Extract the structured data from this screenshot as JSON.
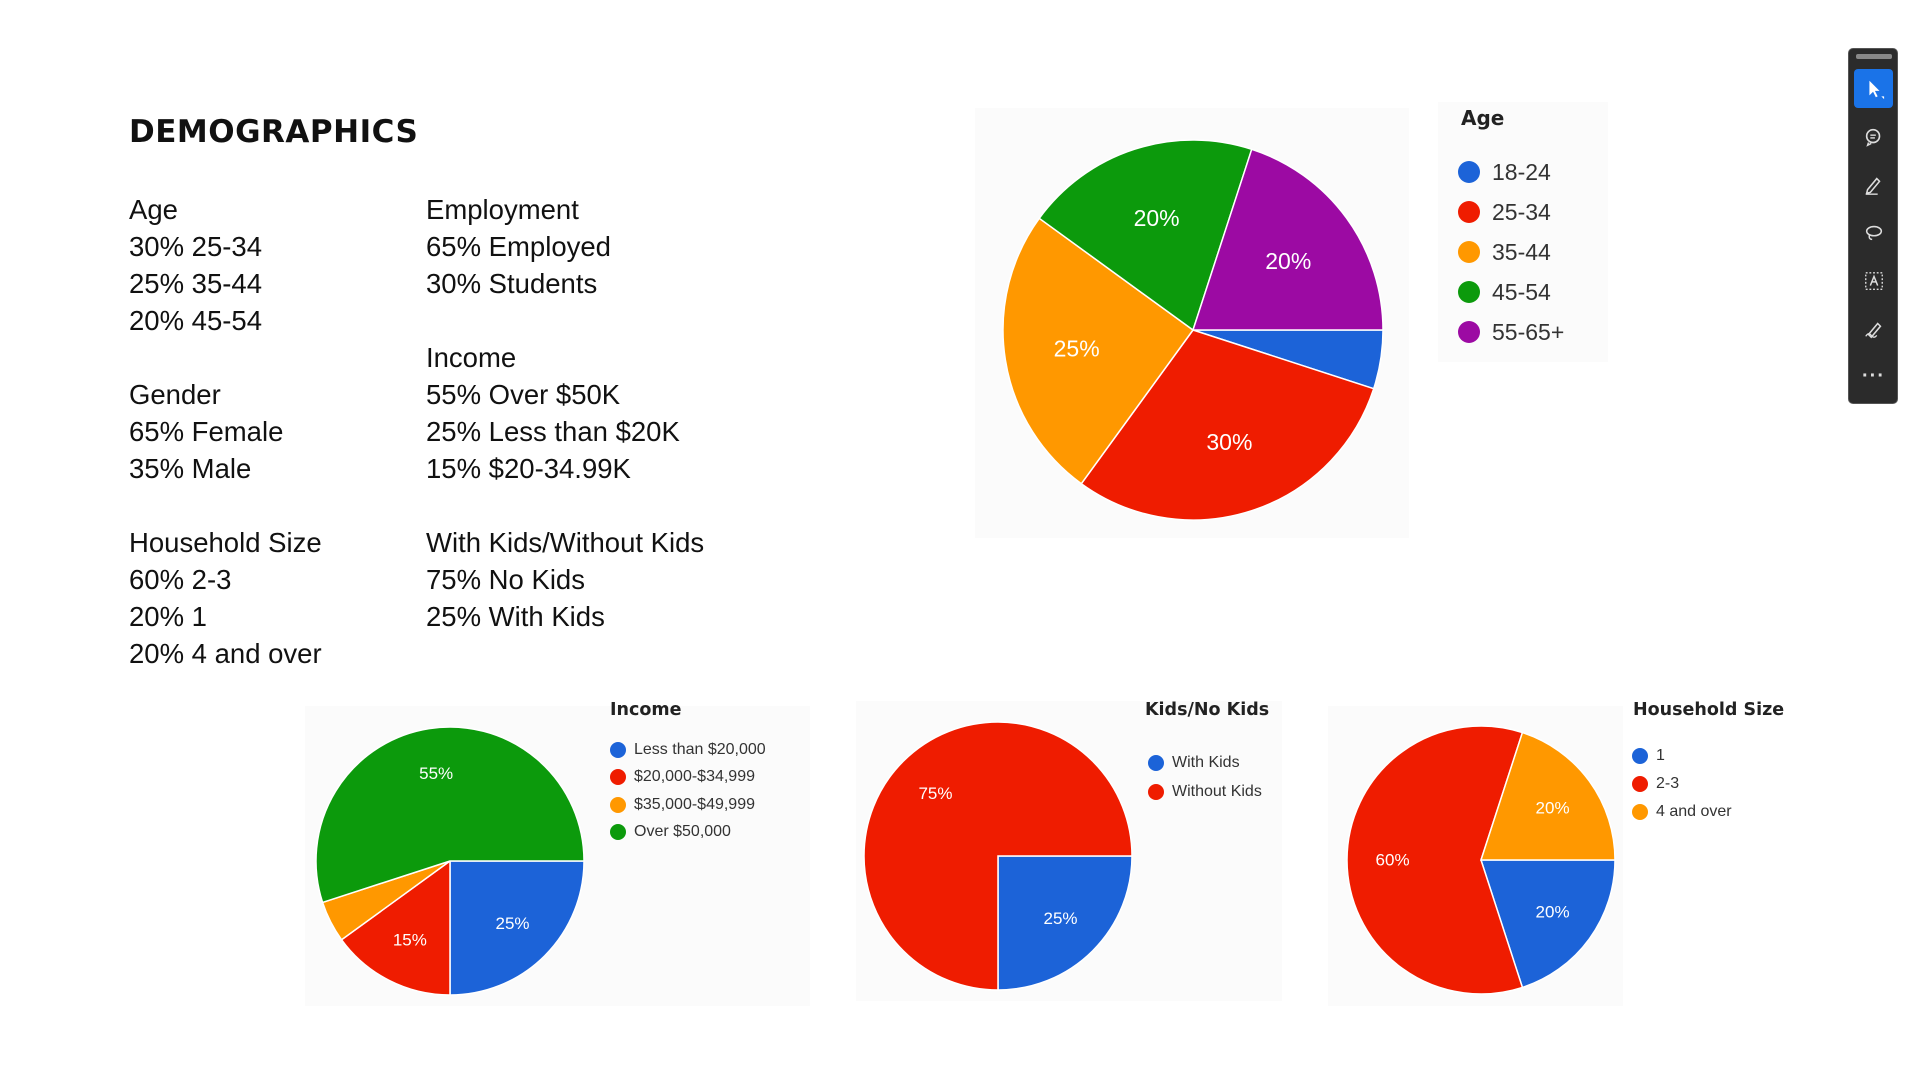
{
  "heading": "DEMOGRAPHICS",
  "left_column": [
    [
      "Age",
      "30% 25-34",
      "25% 35-44",
      "20% 45-54"
    ],
    [
      "Gender",
      "65% Female",
      "35% Male"
    ],
    [
      "Household Size",
      "60% 2-3",
      "20% 1",
      "20% 4 and over"
    ]
  ],
  "right_column": [
    [
      "Employment",
      "65% Employed",
      "30% Students"
    ],
    [
      "Income",
      "55% Over $50K",
      "25% Less than $20K",
      "15% $20-34.99K"
    ],
    [
      "With Kids/Without Kids",
      "75% No Kids",
      "25% With Kids"
    ]
  ],
  "chart_data": [
    {
      "type": "pie",
      "title": "Age",
      "categories": [
        "18-24",
        "25-34",
        "35-44",
        "45-54",
        "55-65+"
      ],
      "values": [
        5,
        30,
        25,
        20,
        20
      ],
      "labels": [
        "",
        "30%",
        "25%",
        "20%",
        "20%"
      ],
      "colors": [
        "#1c63d8",
        "#ef1c00",
        "#ff9800",
        "#0c9a0c",
        "#9c0aa3"
      ]
    },
    {
      "type": "pie",
      "title": "Income",
      "categories": [
        "Less than $20,000",
        "$20,000-$34,999",
        "$35,000-$49,999",
        "Over $50,000"
      ],
      "values": [
        25,
        15,
        5,
        55
      ],
      "labels": [
        "25%",
        "15%",
        "",
        "55%"
      ],
      "colors": [
        "#1c63d8",
        "#ef1c00",
        "#ff9800",
        "#0c9a0c"
      ]
    },
    {
      "type": "pie",
      "title": "Kids/No Kids",
      "categories": [
        "With Kids",
        "Without Kids"
      ],
      "values": [
        25,
        75
      ],
      "labels": [
        "25%",
        "75%"
      ],
      "colors": [
        "#1c63d8",
        "#ef1c00"
      ]
    },
    {
      "type": "pie",
      "title": "Household Size",
      "categories": [
        "1",
        "2-3",
        "4 and over"
      ],
      "values": [
        20,
        60,
        20
      ],
      "labels": [
        "20%",
        "60%",
        "20%"
      ],
      "colors": [
        "#1c63d8",
        "#ef1c00",
        "#ff9800"
      ]
    }
  ],
  "toolbar": {
    "tools": [
      "select-pointer-icon",
      "comment-icon",
      "highlight-pen-icon",
      "lasso-icon",
      "text-select-icon",
      "sign-icon",
      "more-icon"
    ],
    "more_label": "···",
    "active_color": "#1a73e8"
  }
}
